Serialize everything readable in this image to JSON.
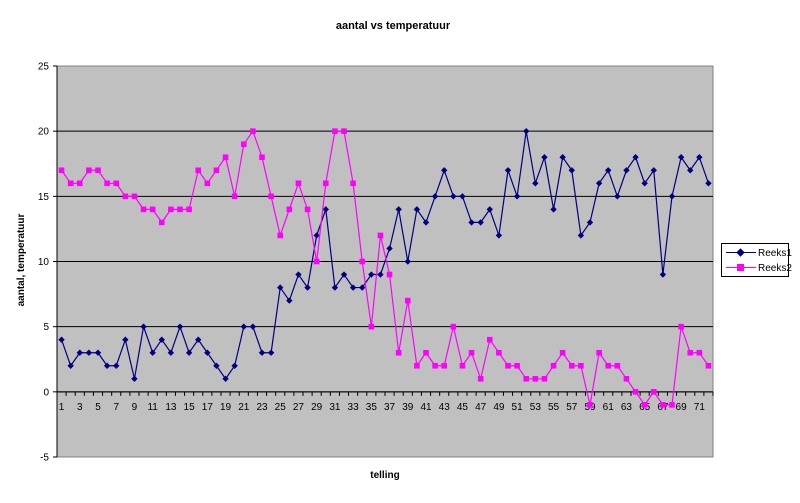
{
  "chart_data": {
    "type": "line",
    "title": "aantal vs temperatuur",
    "xlabel": "telling",
    "ylabel": "aantal, temperatuur",
    "ylim": [
      -5,
      25
    ],
    "yticks": [
      -5,
      0,
      5,
      10,
      15,
      20,
      25
    ],
    "xtick_labels": [
      "1",
      "3",
      "5",
      "7",
      "9",
      "11",
      "13",
      "15",
      "17",
      "19",
      "21",
      "23",
      "25",
      "27",
      "29",
      "31",
      "33",
      "35",
      "37",
      "39",
      "41",
      "43",
      "45",
      "47",
      "49",
      "51",
      "53",
      "55",
      "57",
      "59",
      "61",
      "63",
      "65",
      "67",
      "69",
      "71"
    ],
    "grid": true,
    "legend_position": "right",
    "plot_background": "#c0c0c0",
    "x": [
      1,
      2,
      3,
      4,
      5,
      6,
      7,
      8,
      9,
      10,
      11,
      12,
      13,
      14,
      15,
      16,
      17,
      18,
      19,
      20,
      21,
      22,
      23,
      24,
      25,
      26,
      27,
      28,
      29,
      30,
      31,
      32,
      33,
      34,
      35,
      36,
      37,
      38,
      39,
      40,
      41,
      42,
      43,
      44,
      45,
      46,
      47,
      48,
      49,
      50,
      51,
      52,
      53,
      54,
      55,
      56,
      57,
      58,
      59,
      60,
      61,
      62,
      63,
      64,
      65,
      66,
      67,
      68,
      69,
      70,
      71,
      72
    ],
    "series": [
      {
        "name": "Reeks1",
        "color": "#000080",
        "marker": "diamond",
        "values": [
          4,
          2,
          3,
          3,
          3,
          2,
          2,
          4,
          1,
          5,
          3,
          4,
          3,
          5,
          3,
          4,
          3,
          2,
          1,
          2,
          5,
          5,
          3,
          3,
          8,
          7,
          9,
          8,
          12,
          14,
          8,
          9,
          8,
          8,
          9,
          9,
          11,
          14,
          10,
          14,
          13,
          15,
          17,
          15,
          15,
          13,
          13,
          14,
          12,
          17,
          15,
          20,
          16,
          18,
          14,
          18,
          17,
          12,
          13,
          16,
          17,
          15,
          17,
          18,
          16,
          17,
          9,
          15,
          18,
          17,
          18,
          16
        ]
      },
      {
        "name": "Reeks2",
        "color": "#ff00ff",
        "marker": "square",
        "values": [
          17,
          16,
          16,
          17,
          17,
          16,
          16,
          15,
          15,
          14,
          14,
          13,
          14,
          14,
          14,
          17,
          16,
          17,
          18,
          15,
          19,
          20,
          18,
          15,
          12,
          14,
          16,
          14,
          10,
          16,
          20,
          20,
          16,
          10,
          5,
          12,
          9,
          3,
          7,
          2,
          3,
          2,
          2,
          5,
          2,
          3,
          1,
          4,
          3,
          2,
          2,
          1,
          1,
          1,
          2,
          3,
          2,
          2,
          -1,
          3,
          2,
          2,
          1,
          0,
          -1,
          0,
          -1,
          -1,
          5,
          3,
          3,
          2
        ]
      }
    ]
  }
}
